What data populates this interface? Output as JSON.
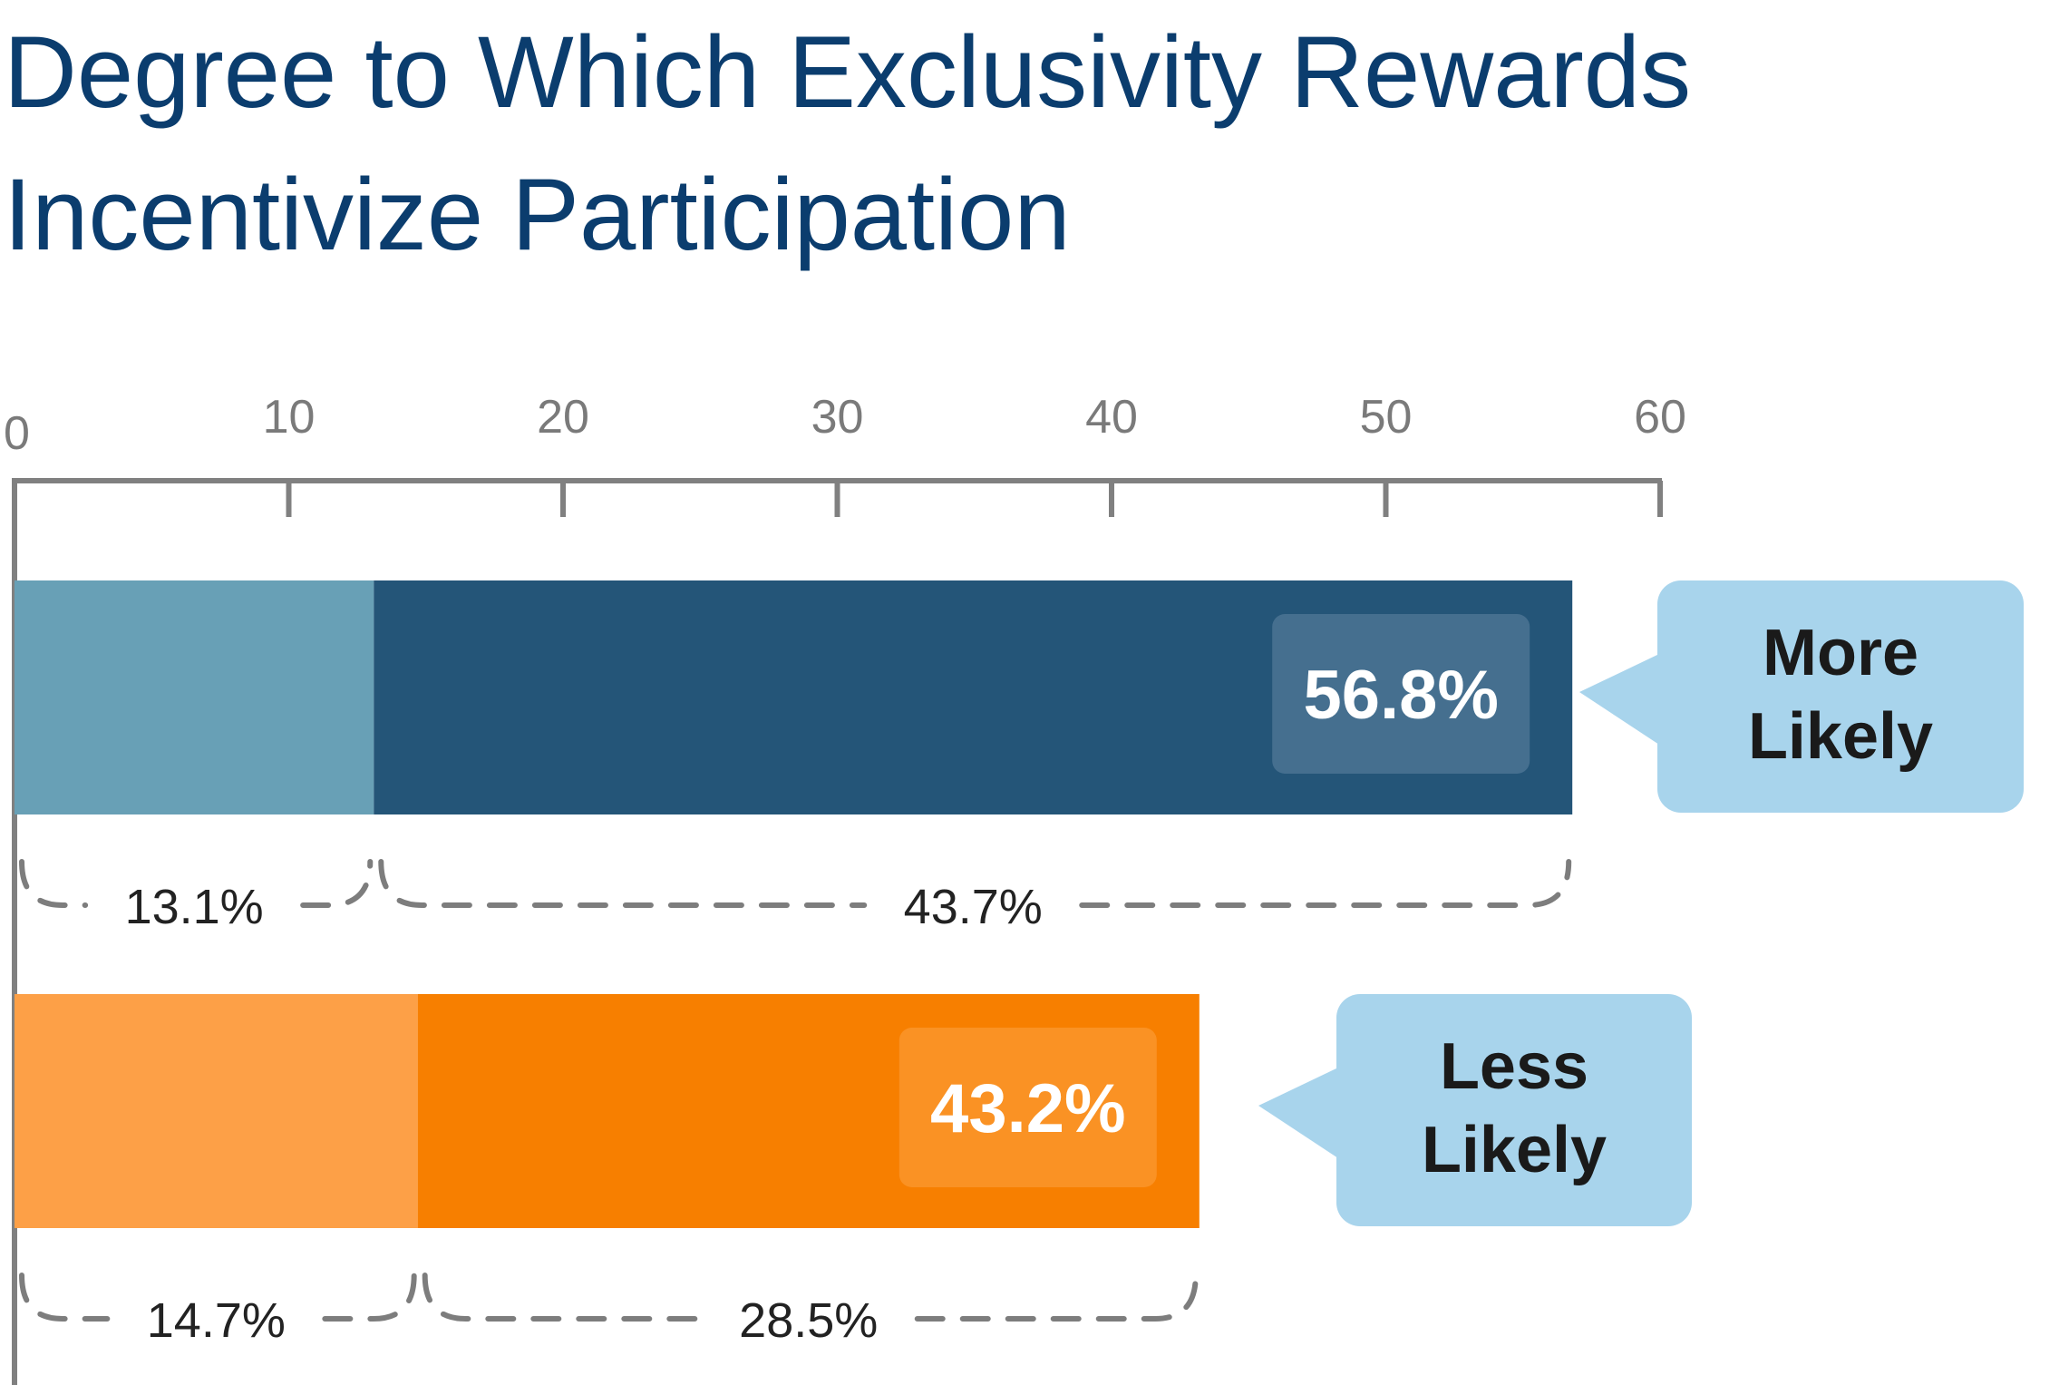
{
  "chart_data": {
    "type": "bar",
    "orientation": "horizontal",
    "stacked": true,
    "title": "Degree to Which Exclusivity Rewards Incentivize Participation",
    "title_lines": [
      "Degree to Which Exclusivity Rewards",
      "Incentivize Participation"
    ],
    "xlim": [
      0,
      60
    ],
    "x_ticks": [
      "0",
      "10",
      "20",
      "30",
      "40",
      "50",
      "60"
    ],
    "x_tick_values": [
      0,
      10,
      20,
      30,
      40,
      50,
      60
    ],
    "grid": false,
    "categories": [
      "More Likely",
      "Less Likely"
    ],
    "bars": [
      {
        "category": "More Likely",
        "callout_lines": [
          "More",
          "Likely"
        ],
        "total": 56.8,
        "total_label": "56.8%",
        "segments": [
          {
            "value": 13.1,
            "label": "13.1%",
            "color": "#68a0b6"
          },
          {
            "value": 43.7,
            "label": "43.7%",
            "color": "#245578"
          }
        ],
        "total_badge_color": "#456f8f",
        "callout_color": "#a8d4ec"
      },
      {
        "category": "Less Likely",
        "callout_lines": [
          "Less",
          "Likely"
        ],
        "total": 43.2,
        "total_label": "43.2%",
        "segments": [
          {
            "value": 14.7,
            "label": "14.7%",
            "color": "#fda047"
          },
          {
            "value": 28.5,
            "label": "28.5%",
            "color": "#f77f00"
          }
        ],
        "total_badge_color": "#fa9224",
        "callout_color": "#a8d4ec"
      }
    ],
    "colors": {
      "title": "#0b3d6e",
      "axis": "#808080",
      "tick_label": "#7a7a7a"
    }
  }
}
